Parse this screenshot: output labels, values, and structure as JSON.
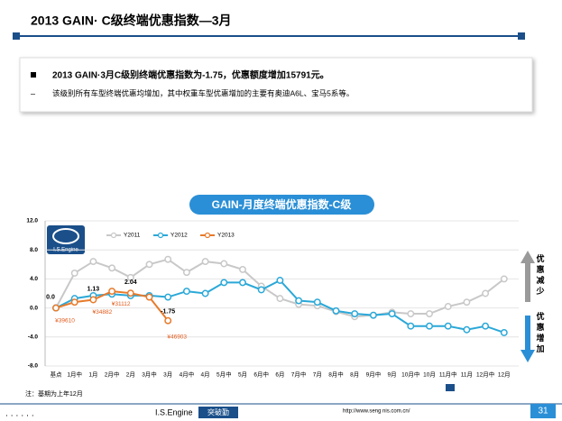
{
  "slide": {
    "title": "2013 GAIN· C级终端优惠指数—3月",
    "bullets": [
      "2013 GAIN·3月C级别终端优惠指数为-1.75，优惠额度增加15791元。",
      "该级别所有车型终端优惠均增加，其中权重车型优惠增加的主要有奥迪A6L、宝马5系等。"
    ],
    "footer_brand": "I.S.Engine",
    "footer_tag": "突破勤",
    "footer_url": "http://www.seng nis.com.cn/",
    "page": "31",
    "logo": "I.S.Engine"
  },
  "chart_data": {
    "type": "line",
    "title": "GAIN-月度终端优惠指数-C级",
    "categories": [
      "基点",
      "1月中",
      "1月",
      "2月中",
      "2月",
      "3月中",
      "3月",
      "4月中",
      "4月",
      "5月中",
      "5月",
      "6月中",
      "6月",
      "7月中",
      "7月",
      "8月中",
      "8月",
      "9月中",
      "9月",
      "10月中",
      "10月",
      "11月中",
      "11月",
      "12月中",
      "12月"
    ],
    "series": [
      {
        "name": "Y2011",
        "color": "#c8c8c8",
        "values": [
          0,
          4.8,
          6.4,
          5.5,
          4.2,
          6.0,
          6.7,
          4.9,
          6.4,
          6.1,
          5.3,
          3.0,
          1.3,
          0.5,
          0.3,
          -0.5,
          -1.2,
          -1.0,
          -0.6,
          -0.8,
          -0.8,
          0.2,
          0.8,
          2.0,
          4.0
        ]
      },
      {
        "name": "Y2012",
        "color": "#2aa8d8",
        "values": [
          0,
          1.3,
          1.7,
          1.9,
          1.7,
          1.7,
          1.5,
          2.3,
          2.0,
          3.5,
          3.5,
          2.5,
          3.8,
          1.0,
          0.8,
          -0.4,
          -0.8,
          -1.0,
          -0.8,
          -2.5,
          -2.5,
          -2.5,
          -3.0,
          -2.5,
          -3.4
        ]
      },
      {
        "name": "Y2013",
        "color": "#e87a2a",
        "values": [
          0,
          0.8,
          1.13,
          2.3,
          2.04,
          1.5,
          -1.75,
          null,
          null,
          null,
          null,
          null,
          null,
          null,
          null,
          null,
          null,
          null,
          null,
          null,
          null,
          null,
          null,
          null,
          null
        ],
        "value_labels": [
          "0.0",
          null,
          "1.13",
          null,
          "2.04",
          null,
          "-1.75",
          null,
          null,
          null,
          null,
          null,
          null,
          null,
          null,
          null,
          null,
          null,
          null,
          null,
          null,
          null,
          null,
          null,
          null
        ]
      }
    ],
    "ylim": [
      -8,
      12
    ],
    "yticks": [
      {
        "value": -8,
        "label": "-8.0"
      },
      {
        "value": -4,
        "label": "-4.0"
      },
      {
        "value": 0,
        "label": "0.0"
      },
      {
        "value": 4,
        "label": "4.0"
      },
      {
        "value": 8,
        "label": "8.0"
      },
      {
        "value": 12,
        "label": "12.0"
      }
    ],
    "grid": true,
    "annotations": [
      {
        "text": "¥39610",
        "x": "基点"
      },
      {
        "text": "¥34882",
        "x": "1月"
      },
      {
        "text": "¥31112",
        "x": "2月中"
      },
      {
        "text": "¥46903",
        "x": "3月"
      }
    ],
    "up_label": "优惠减少",
    "down_label": "优惠增加",
    "note": "注：基期为上年12月"
  }
}
